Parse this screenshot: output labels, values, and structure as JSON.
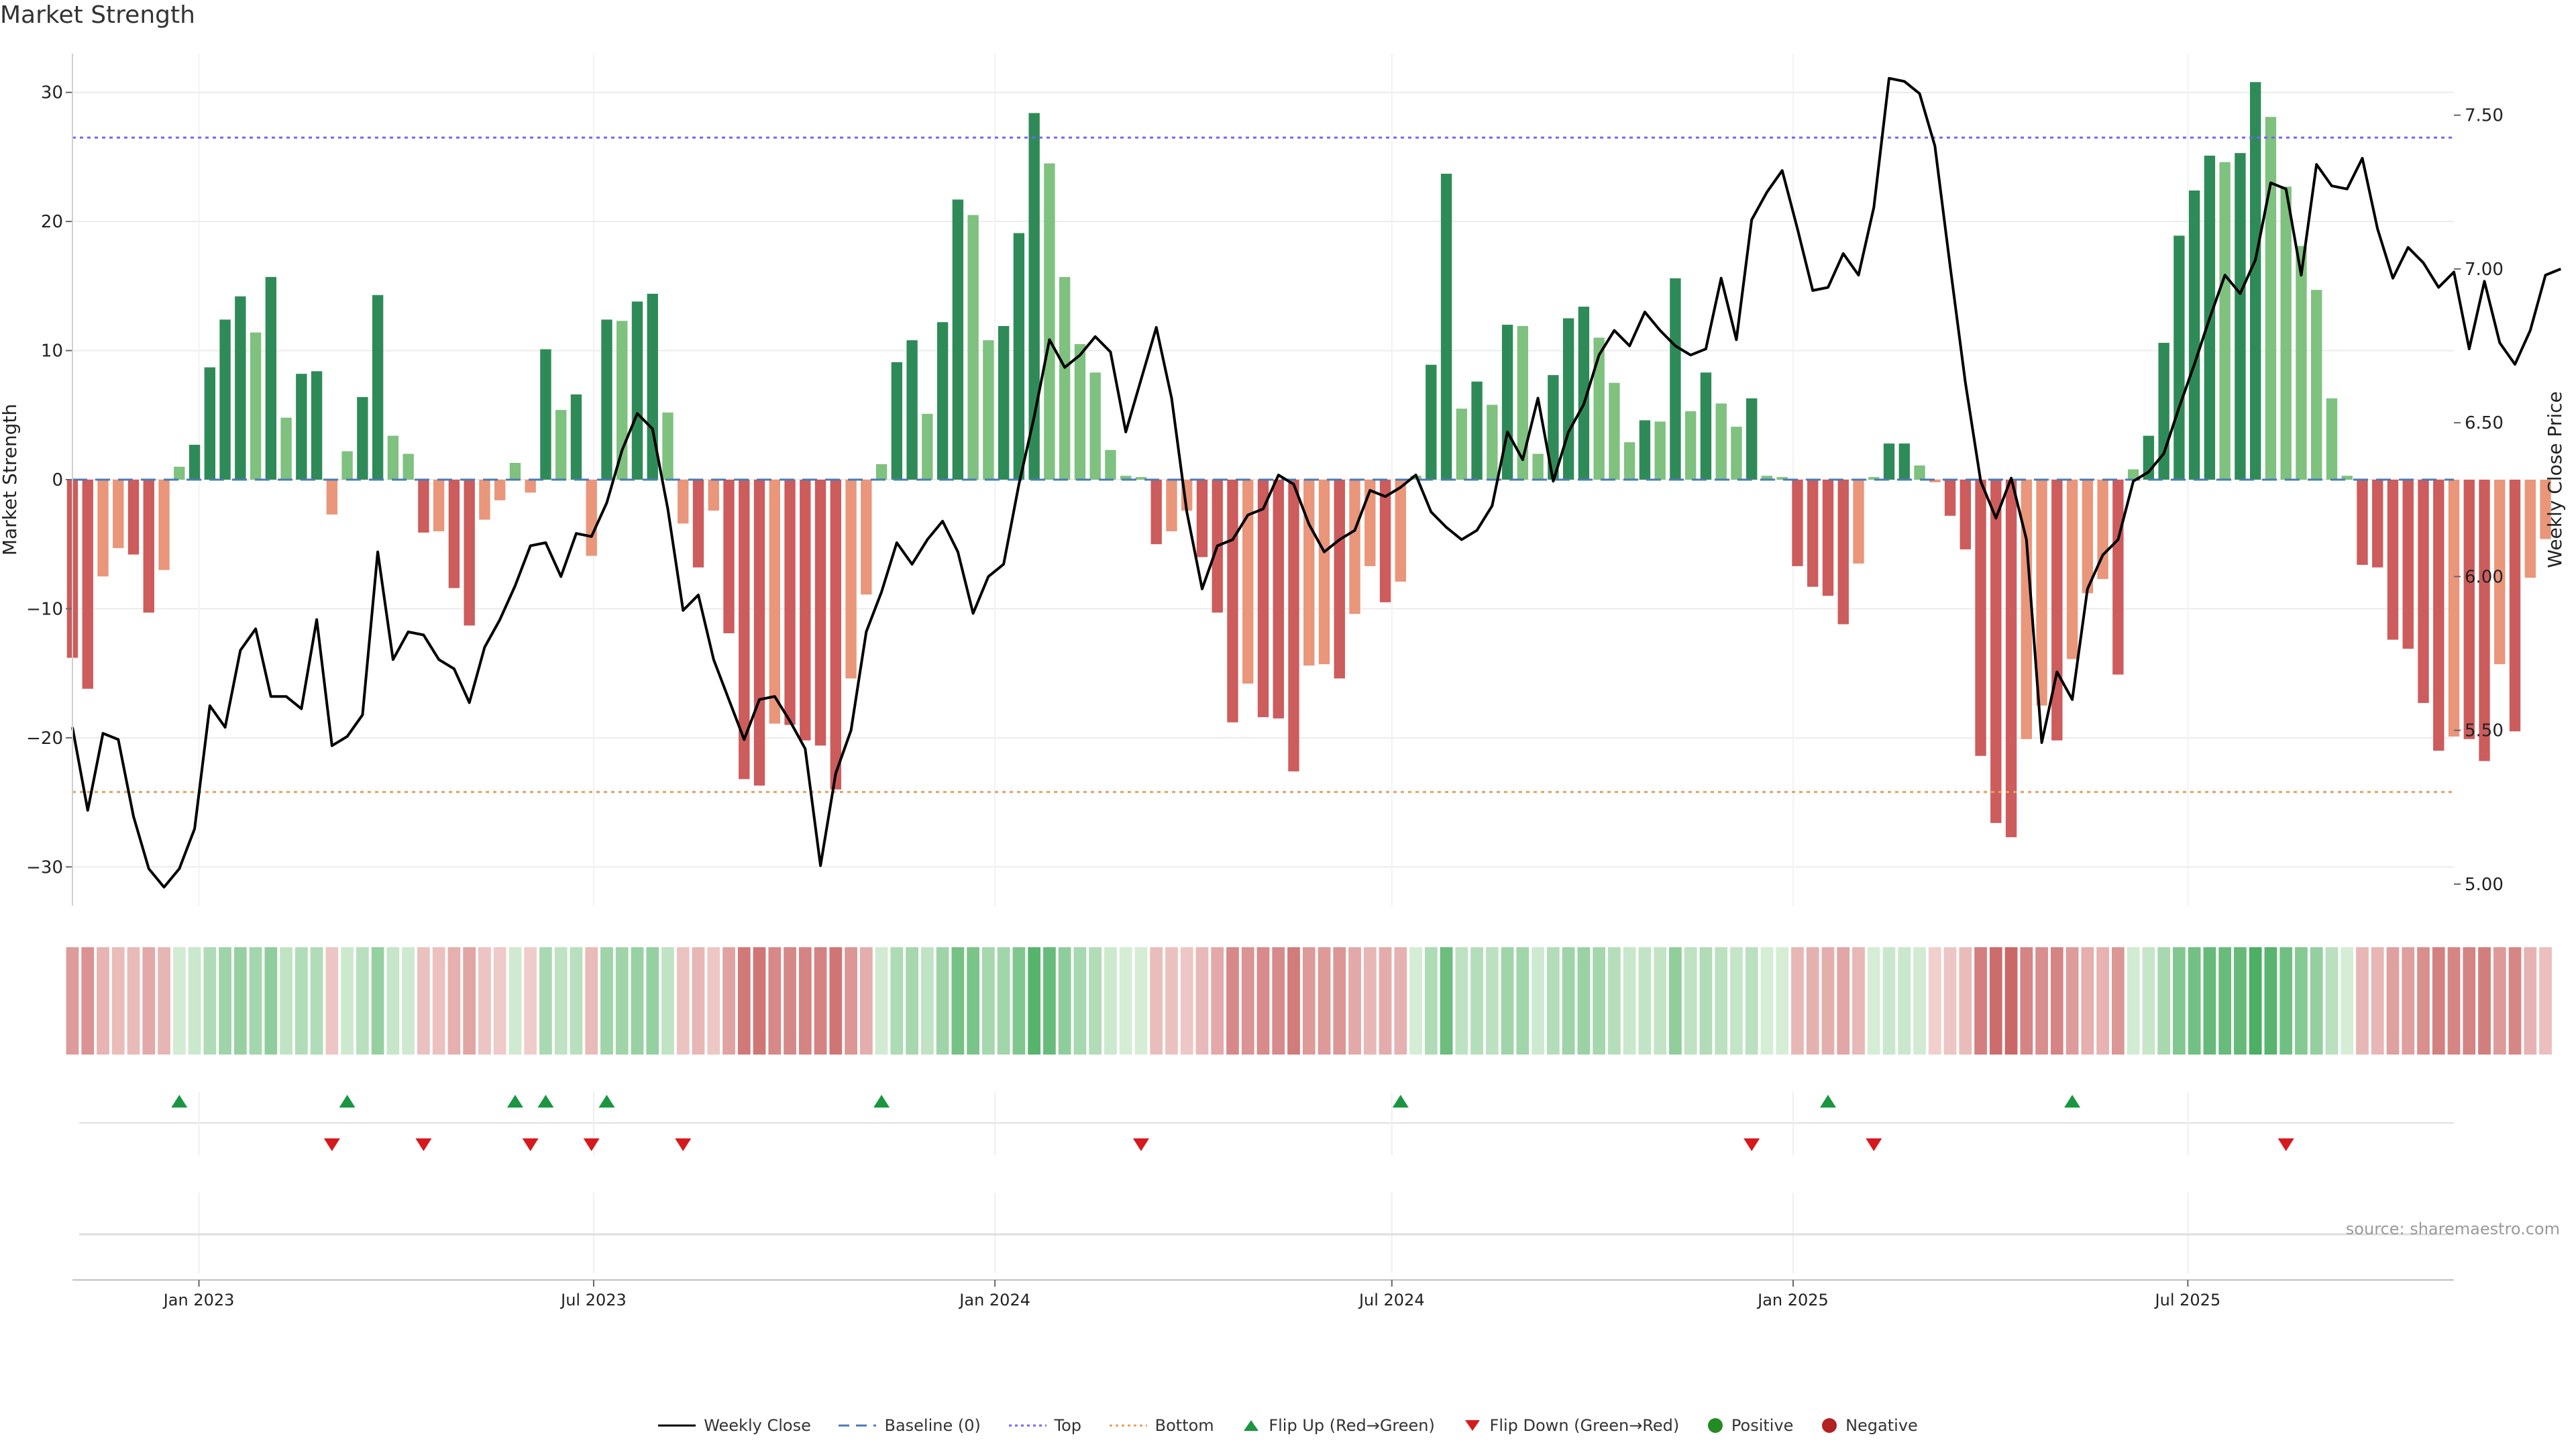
{
  "chart_data": {
    "type": "bar",
    "title": "Market Strength",
    "ylabel": "Market Strength",
    "y2label": "Weekly Close Price",
    "ylim": [
      -33,
      33
    ],
    "y2lim": [
      4.93,
      7.7
    ],
    "yticks": [
      -30,
      -20,
      -10,
      0,
      10,
      20,
      30
    ],
    "y2ticks": [
      5.0,
      5.5,
      6.0,
      6.5,
      7.0,
      7.5
    ],
    "y2ticklabels": [
      "5.00",
      "5.50",
      "6.00",
      "6.50",
      "7.00",
      "7.50"
    ],
    "xrange": [
      "2022-11-04",
      "2025-10-31"
    ],
    "xticks": [
      {
        "date": "2023-01-01",
        "label": "Jan 2023"
      },
      {
        "date": "2023-07-01",
        "label": "Jul 2023"
      },
      {
        "date": "2024-01-01",
        "label": "Jan 2024"
      },
      {
        "date": "2024-07-01",
        "label": "Jul 2024"
      },
      {
        "date": "2025-01-01",
        "label": "Jan 2025"
      },
      {
        "date": "2025-07-01",
        "label": "Jul 2025"
      }
    ],
    "start_date": "2022-11-04",
    "top_level": 26.5,
    "bottom_level": -24.2,
    "grid": true,
    "legend_position": "bottom",
    "colors": {
      "pos_strong": "#2e8b57",
      "pos_light": "#7fc17f",
      "neg_strong": "#cd5c5c",
      "neg_light": "#e9967a",
      "line": "#000000",
      "baseline": "#4a7bb7",
      "top": "#7b61ff",
      "bottom": "#e8a060",
      "flip_up": "#1a9641",
      "flip_down": "#d7191c",
      "positive": "#228b22",
      "negative": "#b22222"
    },
    "strength": [
      -13.8,
      -16.2,
      -7.5,
      -5.3,
      -5.8,
      -10.3,
      -7.0,
      1.0,
      2.7,
      8.7,
      12.4,
      14.2,
      11.4,
      15.7,
      4.8,
      8.2,
      8.4,
      -2.7,
      2.2,
      6.4,
      14.3,
      3.4,
      2.0,
      -4.1,
      -4.0,
      -8.4,
      -11.3,
      -3.1,
      -1.6,
      1.3,
      -1.0,
      10.1,
      5.4,
      6.6,
      -5.9,
      12.4,
      12.3,
      13.8,
      14.4,
      5.2,
      -3.4,
      -6.8,
      -2.4,
      -11.9,
      -23.2,
      -23.7,
      -18.9,
      -19.0,
      -20.2,
      -20.6,
      -24.0,
      -15.4,
      -8.9,
      1.2,
      9.1,
      10.8,
      5.1,
      12.2,
      21.7,
      20.5,
      10.8,
      11.9,
      19.1,
      28.4,
      24.5,
      15.7,
      10.5,
      8.3,
      2.3,
      0.3,
      0.2,
      -5.0,
      -4.0,
      -2.4,
      -6.0,
      -10.3,
      -18.8,
      -15.8,
      -18.4,
      -18.5,
      -22.6,
      -14.4,
      -14.3,
      -15.4,
      -10.4,
      -6.7,
      -9.5,
      -7.9,
      0.3,
      8.9,
      23.7,
      5.5,
      7.6,
      5.8,
      12.0,
      11.9,
      2.0,
      8.1,
      12.5,
      13.4,
      11.0,
      7.5,
      2.9,
      4.6,
      4.5,
      15.6,
      5.3,
      8.3,
      5.9,
      4.1,
      6.3,
      0.3,
      0.2,
      -6.7,
      -8.3,
      -9.0,
      -11.2,
      -6.5,
      0.2,
      2.8,
      2.8,
      1.1,
      -0.2,
      -2.8,
      -5.4,
      -21.4,
      -26.6,
      -27.7,
      -20.1,
      -17.5,
      -20.2,
      -13.9,
      -8.8,
      -7.7,
      -15.1,
      0.8,
      3.4,
      10.6,
      18.9,
      22.4,
      25.1,
      24.6,
      25.3,
      30.8,
      28.1,
      22.7,
      18.1,
      14.7,
      6.3,
      0.3,
      -6.6,
      -6.8,
      -12.4,
      -13.1,
      -17.3,
      -21.0,
      -19.9,
      -20.1,
      -21.8,
      -14.3,
      -19.5,
      -7.6,
      -4.6
    ],
    "price": [
      5.51,
      5.24,
      5.49,
      5.47,
      5.22,
      5.05,
      4.99,
      5.05,
      5.18,
      5.58,
      5.51,
      5.76,
      5.83,
      5.61,
      5.61,
      5.57,
      5.86,
      5.45,
      5.48,
      5.55,
      6.08,
      5.73,
      5.82,
      5.81,
      5.73,
      5.7,
      5.59,
      5.77,
      5.86,
      5.97,
      6.1,
      6.11,
      6.0,
      6.14,
      6.13,
      6.24,
      6.41,
      6.53,
      6.48,
      6.22,
      5.89,
      5.94,
      5.73,
      5.6,
      5.47,
      5.6,
      5.61,
      5.53,
      5.44,
      5.06,
      5.36,
      5.5,
      5.82,
      5.95,
      6.11,
      6.04,
      6.12,
      6.18,
      6.08,
      5.88,
      6.0,
      6.04,
      6.3,
      6.52,
      6.77,
      6.68,
      6.72,
      6.78,
      6.73,
      6.47,
      6.64,
      6.81,
      6.58,
      6.21,
      5.96,
      6.1,
      6.12,
      6.2,
      6.22,
      6.33,
      6.3,
      6.17,
      6.08,
      6.12,
      6.15,
      6.28,
      6.26,
      6.29,
      6.33,
      6.21,
      6.16,
      6.12,
      6.15,
      6.23,
      6.47,
      6.38,
      6.58,
      6.31,
      6.47,
      6.56,
      6.72,
      6.8,
      6.75,
      6.86,
      6.8,
      6.75,
      6.72,
      6.74,
      6.97,
      6.77,
      7.16,
      7.25,
      7.32,
      7.13,
      6.93,
      6.94,
      7.05,
      6.98,
      7.2,
      7.62,
      7.61,
      7.57,
      7.4,
      7.01,
      6.63,
      6.31,
      6.19,
      6.32,
      6.12,
      5.46,
      5.69,
      5.6,
      5.96,
      6.07,
      6.12,
      6.31,
      6.34,
      6.4,
      6.55,
      6.69,
      6.84,
      6.98,
      6.92,
      7.03,
      7.28,
      7.26,
      6.98,
      7.34,
      7.27,
      7.26,
      7.36,
      7.13,
      6.97,
      7.07,
      7.02,
      6.94,
      6.99,
      6.74,
      6.96,
      6.76,
      6.69,
      6.8,
      6.98,
      7.0
    ],
    "flips_up": [
      7,
      18,
      29,
      31,
      35,
      53,
      87,
      115,
      131
    ],
    "flips_down": [
      17,
      23,
      30,
      34,
      40,
      70,
      110,
      118,
      145
    ]
  }
}
